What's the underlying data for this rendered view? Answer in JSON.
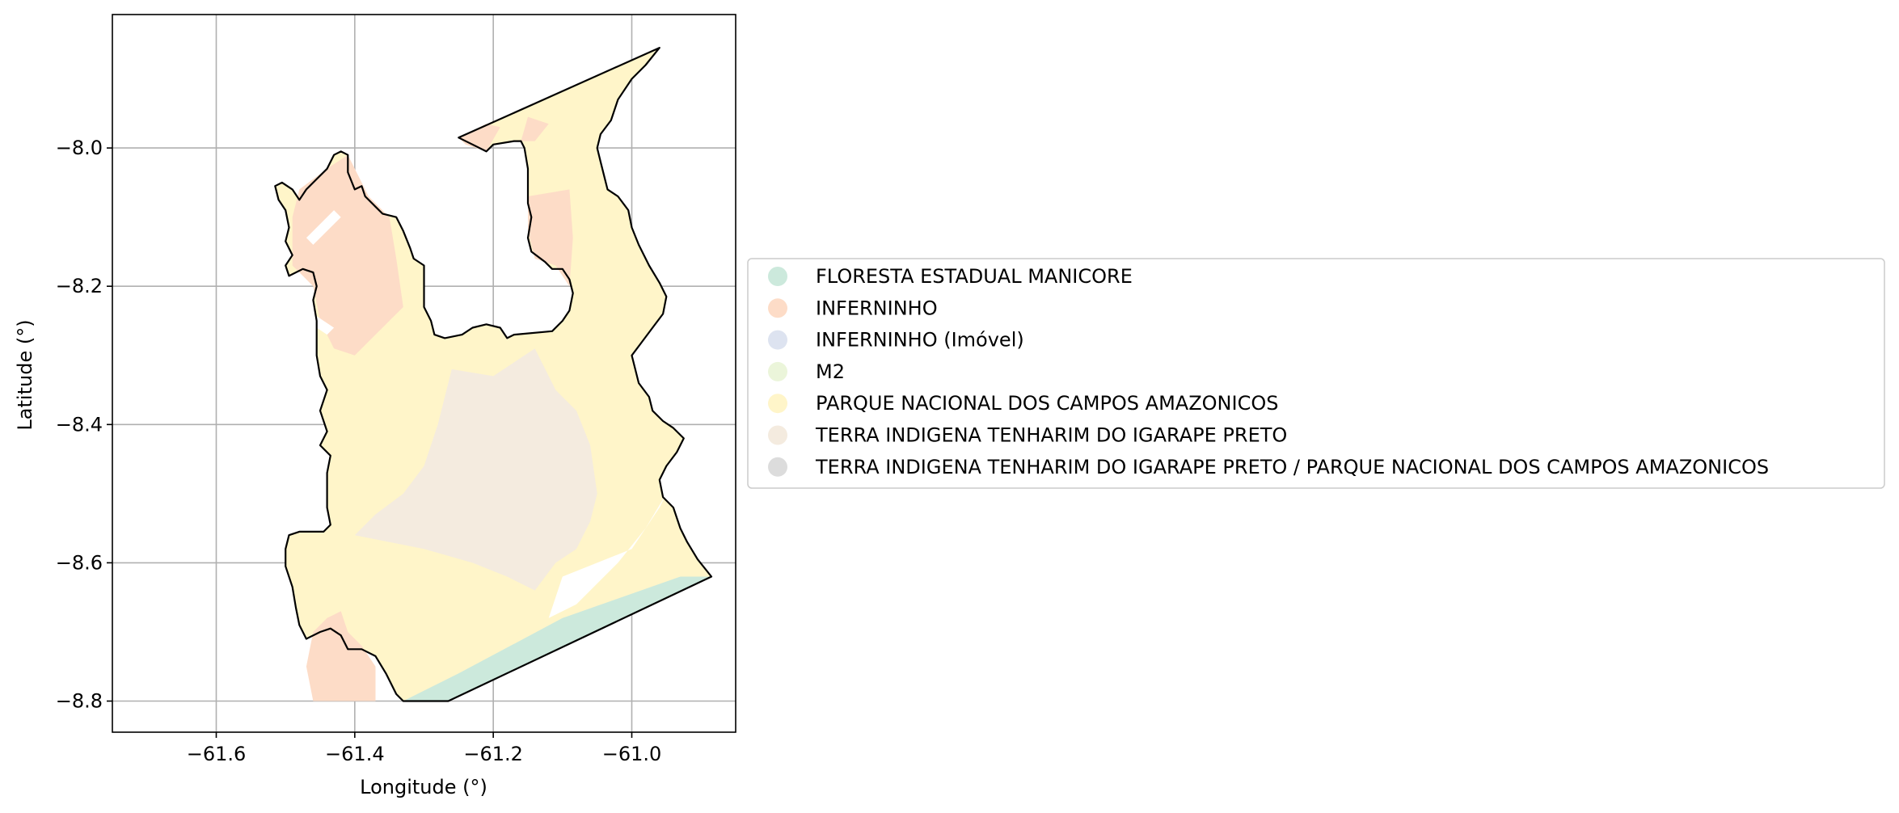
{
  "chart_data": {
    "type": "map",
    "xlabel": "Longitude (°)",
    "ylabel": "Latitude (°)",
    "xlim": [
      -61.75,
      -60.85
    ],
    "ylim": [
      -8.845,
      -7.807
    ],
    "grid": true,
    "legend_placement": "right-center",
    "x_ticks": [
      {
        "value": -61.6,
        "label": "−61.6"
      },
      {
        "value": -61.4,
        "label": "−61.4"
      },
      {
        "value": -61.2,
        "label": "−61.2"
      },
      {
        "value": -61.0,
        "label": "−61.0"
      }
    ],
    "y_ticks": [
      {
        "value": -8.0,
        "label": "−8.0"
      },
      {
        "value": -8.2,
        "label": "−8.2"
      },
      {
        "value": -8.4,
        "label": "−8.4"
      },
      {
        "value": -8.6,
        "label": "−8.6"
      },
      {
        "value": -8.8,
        "label": "−8.8"
      }
    ],
    "legend": [
      {
        "label": "FLORESTA ESTADUAL MANICORE",
        "color": "#cce9dc"
      },
      {
        "label": "INFERNINHO",
        "color": "#fddcc7"
      },
      {
        "label": "INFERNINHO (Imóvel)",
        "color": "#dde3f0"
      },
      {
        "label": "M2",
        "color": "#ebf5da"
      },
      {
        "label": "PARQUE NACIONAL DOS CAMPOS AMAZONICOS",
        "color": "#fff5c9"
      },
      {
        "label": "TERRA INDIGENA TENHARIM DO IGARAPE PRETO",
        "color": "#f4ebdf"
      },
      {
        "label": "TERRA INDIGENA TENHARIM DO IGARAPE PRETO / PARQUE NACIONAL DOS CAMPOS AMAZONICOS",
        "color": "#dcdcdc"
      }
    ],
    "boundary": [
      [
        -61.25,
        -7.985
      ],
      [
        -61.23,
        -7.995
      ],
      [
        -61.21,
        -8.005
      ],
      [
        -61.2,
        -7.995
      ],
      [
        -61.17,
        -7.99
      ],
      [
        -61.16,
        -7.99
      ],
      [
        -61.155,
        -8.0
      ],
      [
        -61.15,
        -8.03
      ],
      [
        -61.15,
        -8.08
      ],
      [
        -61.145,
        -8.1
      ],
      [
        -61.15,
        -8.13
      ],
      [
        -61.145,
        -8.15
      ],
      [
        -61.125,
        -8.165
      ],
      [
        -61.115,
        -8.175
      ],
      [
        -61.1,
        -8.175
      ],
      [
        -61.09,
        -8.19
      ],
      [
        -61.085,
        -8.21
      ],
      [
        -61.09,
        -8.235
      ],
      [
        -61.1,
        -8.25
      ],
      [
        -61.115,
        -8.265
      ],
      [
        -61.17,
        -8.27
      ],
      [
        -61.18,
        -8.275
      ],
      [
        -61.19,
        -8.26
      ],
      [
        -61.21,
        -8.255
      ],
      [
        -61.23,
        -8.26
      ],
      [
        -61.245,
        -8.27
      ],
      [
        -61.27,
        -8.275
      ],
      [
        -61.285,
        -8.27
      ],
      [
        -61.29,
        -8.25
      ],
      [
        -61.3,
        -8.23
      ],
      [
        -61.3,
        -8.17
      ],
      [
        -61.315,
        -8.16
      ],
      [
        -61.32,
        -8.145
      ],
      [
        -61.33,
        -8.12
      ],
      [
        -61.34,
        -8.1
      ],
      [
        -61.36,
        -8.095
      ],
      [
        -61.37,
        -8.085
      ],
      [
        -61.385,
        -8.07
      ],
      [
        -61.39,
        -8.055
      ],
      [
        -61.4,
        -8.06
      ],
      [
        -61.41,
        -8.035
      ],
      [
        -61.41,
        -8.01
      ],
      [
        -61.42,
        -8.005
      ],
      [
        -61.43,
        -8.01
      ],
      [
        -61.44,
        -8.03
      ],
      [
        -61.455,
        -8.045
      ],
      [
        -61.47,
        -8.06
      ],
      [
        -61.48,
        -8.075
      ],
      [
        -61.49,
        -8.06
      ],
      [
        -61.505,
        -8.05
      ],
      [
        -61.515,
        -8.055
      ],
      [
        -61.51,
        -8.075
      ],
      [
        -61.5,
        -8.09
      ],
      [
        -61.495,
        -8.115
      ],
      [
        -61.5,
        -8.135
      ],
      [
        -61.49,
        -8.155
      ],
      [
        -61.5,
        -8.17
      ],
      [
        -61.495,
        -8.185
      ],
      [
        -61.475,
        -8.175
      ],
      [
        -61.46,
        -8.18
      ],
      [
        -61.455,
        -8.2
      ],
      [
        -61.46,
        -8.22
      ],
      [
        -61.455,
        -8.25
      ],
      [
        -61.455,
        -8.3
      ],
      [
        -61.45,
        -8.33
      ],
      [
        -61.44,
        -8.35
      ],
      [
        -61.45,
        -8.38
      ],
      [
        -61.44,
        -8.41
      ],
      [
        -61.45,
        -8.43
      ],
      [
        -61.435,
        -8.445
      ],
      [
        -61.44,
        -8.47
      ],
      [
        -61.44,
        -8.52
      ],
      [
        -61.435,
        -8.545
      ],
      [
        -61.445,
        -8.555
      ],
      [
        -61.46,
        -8.555
      ],
      [
        -61.48,
        -8.555
      ],
      [
        -61.495,
        -8.56
      ],
      [
        -61.5,
        -8.58
      ],
      [
        -61.5,
        -8.605
      ],
      [
        -61.49,
        -8.635
      ],
      [
        -61.485,
        -8.665
      ],
      [
        -61.48,
        -8.69
      ],
      [
        -61.47,
        -8.71
      ],
      [
        -61.45,
        -8.7
      ],
      [
        -61.435,
        -8.695
      ],
      [
        -61.42,
        -8.705
      ],
      [
        -61.41,
        -8.725
      ],
      [
        -61.39,
        -8.725
      ],
      [
        -61.37,
        -8.735
      ],
      [
        -61.355,
        -8.76
      ],
      [
        -61.34,
        -8.79
      ],
      [
        -61.33,
        -8.8
      ],
      [
        -61.265,
        -8.8
      ],
      [
        -60.885,
        -8.62
      ],
      [
        -60.905,
        -8.595
      ],
      [
        -60.92,
        -8.57
      ],
      [
        -60.93,
        -8.55
      ],
      [
        -60.94,
        -8.52
      ],
      [
        -60.955,
        -8.505
      ],
      [
        -60.96,
        -8.48
      ],
      [
        -60.95,
        -8.46
      ],
      [
        -60.935,
        -8.44
      ],
      [
        -60.925,
        -8.42
      ],
      [
        -60.94,
        -8.405
      ],
      [
        -60.955,
        -8.395
      ],
      [
        -60.97,
        -8.38
      ],
      [
        -60.975,
        -8.36
      ],
      [
        -60.99,
        -8.34
      ],
      [
        -60.995,
        -8.32
      ],
      [
        -61.0,
        -8.3
      ],
      [
        -60.985,
        -8.28
      ],
      [
        -60.97,
        -8.26
      ],
      [
        -60.955,
        -8.24
      ],
      [
        -60.95,
        -8.215
      ],
      [
        -60.96,
        -8.195
      ],
      [
        -60.975,
        -8.17
      ],
      [
        -60.99,
        -8.14
      ],
      [
        -61.0,
        -8.115
      ],
      [
        -61.005,
        -8.09
      ],
      [
        -61.02,
        -8.07
      ],
      [
        -61.035,
        -8.06
      ],
      [
        -61.04,
        -8.04
      ],
      [
        -61.045,
        -8.02
      ],
      [
        -61.05,
        -8.0
      ],
      [
        -61.045,
        -7.98
      ],
      [
        -61.03,
        -7.96
      ],
      [
        -61.02,
        -7.93
      ],
      [
        -61.0,
        -7.9
      ],
      [
        -60.98,
        -7.88
      ],
      [
        -60.96,
        -7.855
      ],
      [
        -61.25,
        -7.985
      ]
    ]
  }
}
